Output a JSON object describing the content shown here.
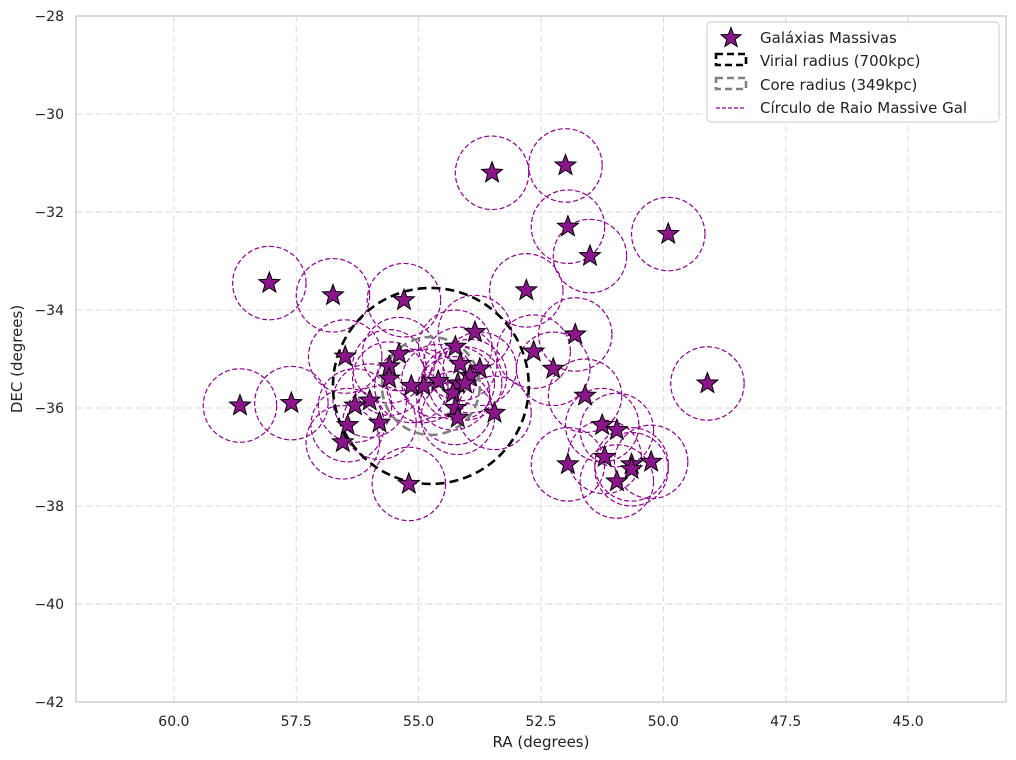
{
  "chart_data": {
    "type": "scatter",
    "title": "",
    "xlabel": "RA (degrees)",
    "ylabel": "DEC (degrees)",
    "xlim": [
      62.0,
      43.0
    ],
    "ylim": [
      -42,
      -28
    ],
    "x_inverted": true,
    "xticks": [
      60.0,
      57.5,
      55.0,
      52.5,
      50.0,
      47.5,
      45.0
    ],
    "xtick_labels": [
      "60.0",
      "57.5",
      "55.0",
      "52.5",
      "50.0",
      "47.5",
      "45.0"
    ],
    "yticks": [
      -28,
      -30,
      -32,
      -34,
      -36,
      -38,
      -40,
      -42
    ],
    "ytick_labels": [
      "−28",
      "−30",
      "−32",
      "−34",
      "−36",
      "−38",
      "−40",
      "−42"
    ],
    "grid": true,
    "legend_position": "top-right",
    "legend": [
      {
        "label": "Galáxias Massivas",
        "kind": "star"
      },
      {
        "label": "Virial radius (700kpc)",
        "kind": "dashed-black"
      },
      {
        "label": "Core radius (349kpc)",
        "kind": "dashed-gray"
      },
      {
        "label": "Círculo de Raio Massive Gal",
        "kind": "dashed-purple"
      }
    ],
    "cluster_center": {
      "x": 54.75,
      "y": -35.55
    },
    "virial_radius_deg": 2.0,
    "core_radius_deg": 1.0,
    "galaxy_circle_radius_deg": 0.75,
    "series": [
      {
        "name": "Galáxias Massivas",
        "points": [
          [
            53.5,
            -31.2
          ],
          [
            52.0,
            -31.05
          ],
          [
            51.95,
            -32.3
          ],
          [
            51.5,
            -32.9
          ],
          [
            49.9,
            -32.45
          ],
          [
            58.05,
            -33.45
          ],
          [
            56.75,
            -33.7
          ],
          [
            55.3,
            -33.8
          ],
          [
            52.8,
            -33.6
          ],
          [
            53.85,
            -34.45
          ],
          [
            51.8,
            -34.5
          ],
          [
            52.65,
            -34.85
          ],
          [
            56.5,
            -34.95
          ],
          [
            55.4,
            -34.9
          ],
          [
            54.25,
            -34.75
          ],
          [
            55.6,
            -35.15
          ],
          [
            54.15,
            -35.1
          ],
          [
            53.75,
            -35.2
          ],
          [
            52.25,
            -35.2
          ],
          [
            54.6,
            -35.45
          ],
          [
            54.9,
            -35.55
          ],
          [
            55.15,
            -35.55
          ],
          [
            55.6,
            -35.4
          ],
          [
            54.2,
            -35.5
          ],
          [
            53.95,
            -35.35
          ],
          [
            54.3,
            -35.7
          ],
          [
            54.05,
            -35.5
          ],
          [
            51.6,
            -35.75
          ],
          [
            49.1,
            -35.5
          ],
          [
            56.0,
            -35.85
          ],
          [
            56.3,
            -35.95
          ],
          [
            58.65,
            -35.95
          ],
          [
            57.6,
            -35.9
          ],
          [
            54.25,
            -36.0
          ],
          [
            53.45,
            -36.1
          ],
          [
            54.2,
            -36.2
          ],
          [
            55.8,
            -36.3
          ],
          [
            56.45,
            -36.35
          ],
          [
            51.25,
            -36.35
          ],
          [
            50.95,
            -36.45
          ],
          [
            56.55,
            -36.7
          ],
          [
            51.2,
            -37.0
          ],
          [
            51.95,
            -37.15
          ],
          [
            50.25,
            -37.1
          ],
          [
            50.65,
            -37.15
          ],
          [
            50.65,
            -37.25
          ],
          [
            50.95,
            -37.5
          ],
          [
            55.2,
            -37.55
          ]
        ]
      }
    ],
    "colors": {
      "star_fill": "#8b158b",
      "star_edge": "#000000",
      "galaxy_circle": "#8b008b",
      "virial": "#000000",
      "core": "#808080",
      "grid": "#d9d9d9",
      "axes": "#cccccc"
    }
  }
}
